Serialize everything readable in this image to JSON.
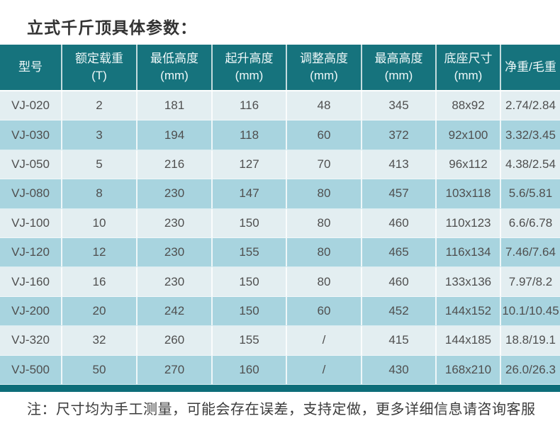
{
  "page": {
    "title": "立式千斤顶具体参数：",
    "note": "注：尺寸均为手工测量，可能会存在误差，支持定做，更多详细信息请咨询客服"
  },
  "colors": {
    "header_bg": "#16737d",
    "row_light": "#e3eef1",
    "row_dark": "#a8d4df",
    "bottom_bar": "#0d6d79",
    "cell_text": "#4f4f4f",
    "header_text": "#eff8f9"
  },
  "chart_data": {
    "type": "table",
    "title": "立式千斤顶具体参数",
    "legend_position": "none",
    "columns": [
      {
        "label": "型号",
        "unit": ""
      },
      {
        "label": "额定载重",
        "unit": "(T)"
      },
      {
        "label": "最低高度",
        "unit": "(mm)"
      },
      {
        "label": "起升高度",
        "unit": "(mm)"
      },
      {
        "label": "调整高度",
        "unit": "(mm)"
      },
      {
        "label": "最高高度",
        "unit": "(mm)"
      },
      {
        "label": "底座尺寸",
        "unit": "(mm)"
      },
      {
        "label": "净重/毛重",
        "unit": ""
      }
    ],
    "rows": [
      [
        "VJ-020",
        "2",
        "181",
        "116",
        "48",
        "345",
        "88x92",
        "2.74/2.84"
      ],
      [
        "VJ-030",
        "3",
        "194",
        "118",
        "60",
        "372",
        "92x100",
        "3.32/3.45"
      ],
      [
        "VJ-050",
        "5",
        "216",
        "127",
        "70",
        "413",
        "96x112",
        "4.38/2.54"
      ],
      [
        "VJ-080",
        "8",
        "230",
        "147",
        "80",
        "457",
        "103x118",
        "5.6/5.81"
      ],
      [
        "VJ-100",
        "10",
        "230",
        "150",
        "80",
        "460",
        "110x123",
        "6.6/6.78"
      ],
      [
        "VJ-120",
        "12",
        "230",
        "155",
        "80",
        "465",
        "116x134",
        "7.46/7.64"
      ],
      [
        "VJ-160",
        "16",
        "230",
        "150",
        "80",
        "460",
        "133x136",
        "7.97/8.2"
      ],
      [
        "VJ-200",
        "20",
        "242",
        "150",
        "60",
        "452",
        "144x152",
        "10.1/10.45"
      ],
      [
        "VJ-320",
        "32",
        "260",
        "155",
        "/",
        "415",
        "144x185",
        "18.8/19.1"
      ],
      [
        "VJ-500",
        "50",
        "270",
        "160",
        "/",
        "430",
        "168x210",
        "26.0/26.3"
      ]
    ]
  }
}
